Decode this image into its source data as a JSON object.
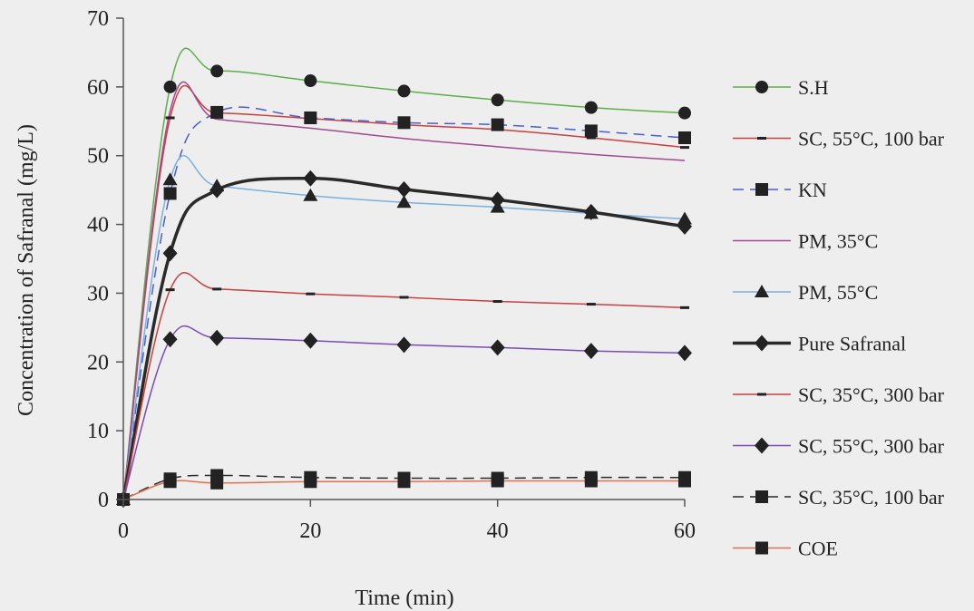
{
  "chart_data": {
    "type": "line",
    "title": "",
    "xlabel": "Time (min)",
    "ylabel": "Concentration of Safranal (mg/L)",
    "xlim": [
      0,
      60
    ],
    "ylim": [
      0,
      70
    ],
    "xticks": [
      0,
      20,
      40,
      60
    ],
    "yticks": [
      0,
      10,
      20,
      30,
      40,
      50,
      60,
      70
    ],
    "grid": false,
    "legend_position": "right",
    "series": [
      {
        "name": "S.H",
        "color": "#5fae4a",
        "marker": "circle",
        "width": 1.5,
        "dash": false,
        "x": [
          0,
          5,
          10,
          20,
          30,
          40,
          50,
          60
        ],
        "y": [
          0,
          60,
          62.3,
          60.9,
          59.4,
          58.1,
          57.0,
          56.2
        ]
      },
      {
        "name": "SC, 55°C, 100 bar",
        "color": "#c84040",
        "marker": "dash",
        "width": 1.5,
        "dash": false,
        "x": [
          0,
          5,
          10,
          20,
          30,
          40,
          50,
          60
        ],
        "y": [
          0,
          55.5,
          56.2,
          55.4,
          54.5,
          53.8,
          52.6,
          51.2
        ]
      },
      {
        "name": "KN",
        "color": "#4a5fcf",
        "marker": "square",
        "width": 1.5,
        "dash": true,
        "x": [
          0,
          5,
          10,
          20,
          30,
          40,
          50,
          60
        ],
        "y": [
          0,
          44.5,
          56.3,
          55.5,
          54.8,
          54.5,
          53.6,
          52.6
        ]
      },
      {
        "name": "PM, 35°C",
        "color": "#a04a90",
        "marker": "none",
        "width": 1.5,
        "dash": false,
        "x": [
          0,
          5,
          10,
          20,
          30,
          40,
          50,
          60
        ],
        "y": [
          0,
          56.5,
          55.3,
          54.0,
          52.5,
          51.3,
          50.2,
          49.3
        ]
      },
      {
        "name": "PM, 55°C",
        "color": "#7ab0e0",
        "marker": "triangle",
        "width": 1.5,
        "dash": false,
        "x": [
          0,
          5,
          10,
          20,
          30,
          40,
          50,
          60
        ],
        "y": [
          0,
          46.5,
          45.6,
          44.2,
          43.2,
          42.5,
          41.6,
          40.8
        ]
      },
      {
        "name": "Pure Safranal",
        "color": "#2a2a2a",
        "marker": "diamond",
        "width": 3.5,
        "dash": false,
        "x": [
          0,
          5,
          10,
          20,
          30,
          40,
          50,
          60
        ],
        "y": [
          0,
          35.8,
          45.0,
          46.7,
          45.1,
          43.6,
          41.8,
          39.7
        ]
      },
      {
        "name": "SC, 35°C, 300 bar",
        "color": "#c84040",
        "marker": "dash",
        "width": 1.5,
        "dash": false,
        "x": [
          0,
          5,
          10,
          20,
          30,
          40,
          50,
          60
        ],
        "y": [
          0,
          30.5,
          30.6,
          29.9,
          29.4,
          28.8,
          28.4,
          27.9
        ]
      },
      {
        "name": "SC, 55°C, 300 bar",
        "color": "#7a4ab8",
        "marker": "diamond",
        "width": 1.5,
        "dash": false,
        "x": [
          0,
          5,
          10,
          20,
          30,
          40,
          50,
          60
        ],
        "y": [
          0,
          23.3,
          23.5,
          23.1,
          22.5,
          22.1,
          21.6,
          21.3
        ]
      },
      {
        "name": "SC, 35°C, 100 bar",
        "color": "#2a2a2a",
        "marker": "square",
        "width": 1.5,
        "dash": true,
        "x": [
          0,
          5,
          10,
          20,
          30,
          40,
          50,
          60
        ],
        "y": [
          0,
          3.0,
          3.5,
          3.2,
          3.1,
          3.1,
          3.2,
          3.2
        ]
      },
      {
        "name": "COE",
        "color": "#e07050",
        "marker": "square",
        "width": 1.5,
        "dash": false,
        "x": [
          0,
          5,
          10,
          20,
          30,
          40,
          50,
          60
        ],
        "y": [
          0,
          2.6,
          2.4,
          2.6,
          2.6,
          2.7,
          2.7,
          2.7
        ]
      }
    ]
  }
}
